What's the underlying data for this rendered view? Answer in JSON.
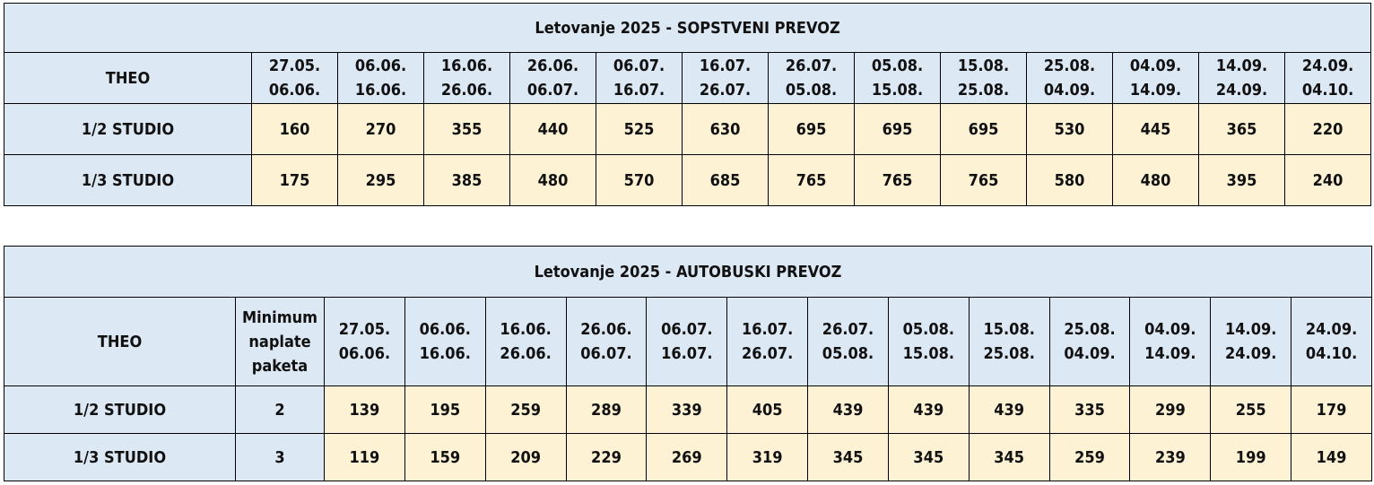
{
  "table1": {
    "title": "Letovanje 2025 - SOPSTVENI PREVOZ",
    "corner": "THEO",
    "periods": [
      [
        "27.05.",
        "06.06."
      ],
      [
        "06.06.",
        "16.06."
      ],
      [
        "16.06.",
        "26.06."
      ],
      [
        "26.06.",
        "06.07."
      ],
      [
        "06.07.",
        "16.07."
      ],
      [
        "16.07.",
        "26.07."
      ],
      [
        "26.07.",
        "05.08."
      ],
      [
        "05.08.",
        "15.08."
      ],
      [
        "15.08.",
        "25.08."
      ],
      [
        "25.08.",
        "04.09."
      ],
      [
        "04.09.",
        "14.09."
      ],
      [
        "14.09.",
        "24.09."
      ],
      [
        "24.09.",
        "04.10."
      ]
    ],
    "rows": [
      {
        "label": "1/2 STUDIO",
        "values": [
          "160",
          "270",
          "355",
          "440",
          "525",
          "630",
          "695",
          "695",
          "695",
          "530",
          "445",
          "365",
          "220"
        ]
      },
      {
        "label": "1/3 STUDIO",
        "values": [
          "175",
          "295",
          "385",
          "480",
          "570",
          "685",
          "765",
          "765",
          "765",
          "580",
          "480",
          "395",
          "240"
        ]
      }
    ]
  },
  "table2": {
    "title": "Letovanje 2025 - AUTOBUSKI PREVOZ",
    "corner": "THEO",
    "min_header": [
      "Minimum",
      "naplate",
      "paketa"
    ],
    "periods": [
      [
        "27.05.",
        "06.06."
      ],
      [
        "06.06.",
        "16.06."
      ],
      [
        "16.06.",
        "26.06."
      ],
      [
        "26.06.",
        "06.07."
      ],
      [
        "06.07.",
        "16.07."
      ],
      [
        "16.07.",
        "26.07."
      ],
      [
        "26.07.",
        "05.08."
      ],
      [
        "05.08.",
        "15.08."
      ],
      [
        "15.08.",
        "25.08."
      ],
      [
        "25.08.",
        "04.09."
      ],
      [
        "04.09.",
        "14.09."
      ],
      [
        "14.09.",
        "24.09."
      ],
      [
        "24.09.",
        "04.10."
      ]
    ],
    "rows": [
      {
        "label": "1/2 STUDIO",
        "min": "2",
        "values": [
          "139",
          "195",
          "259",
          "289",
          "339",
          "405",
          "439",
          "439",
          "439",
          "335",
          "299",
          "255",
          "179"
        ]
      },
      {
        "label": "1/3 STUDIO",
        "min": "3",
        "values": [
          "119",
          "159",
          "209",
          "229",
          "269",
          "319",
          "345",
          "345",
          "345",
          "259",
          "239",
          "199",
          "149"
        ]
      }
    ]
  }
}
